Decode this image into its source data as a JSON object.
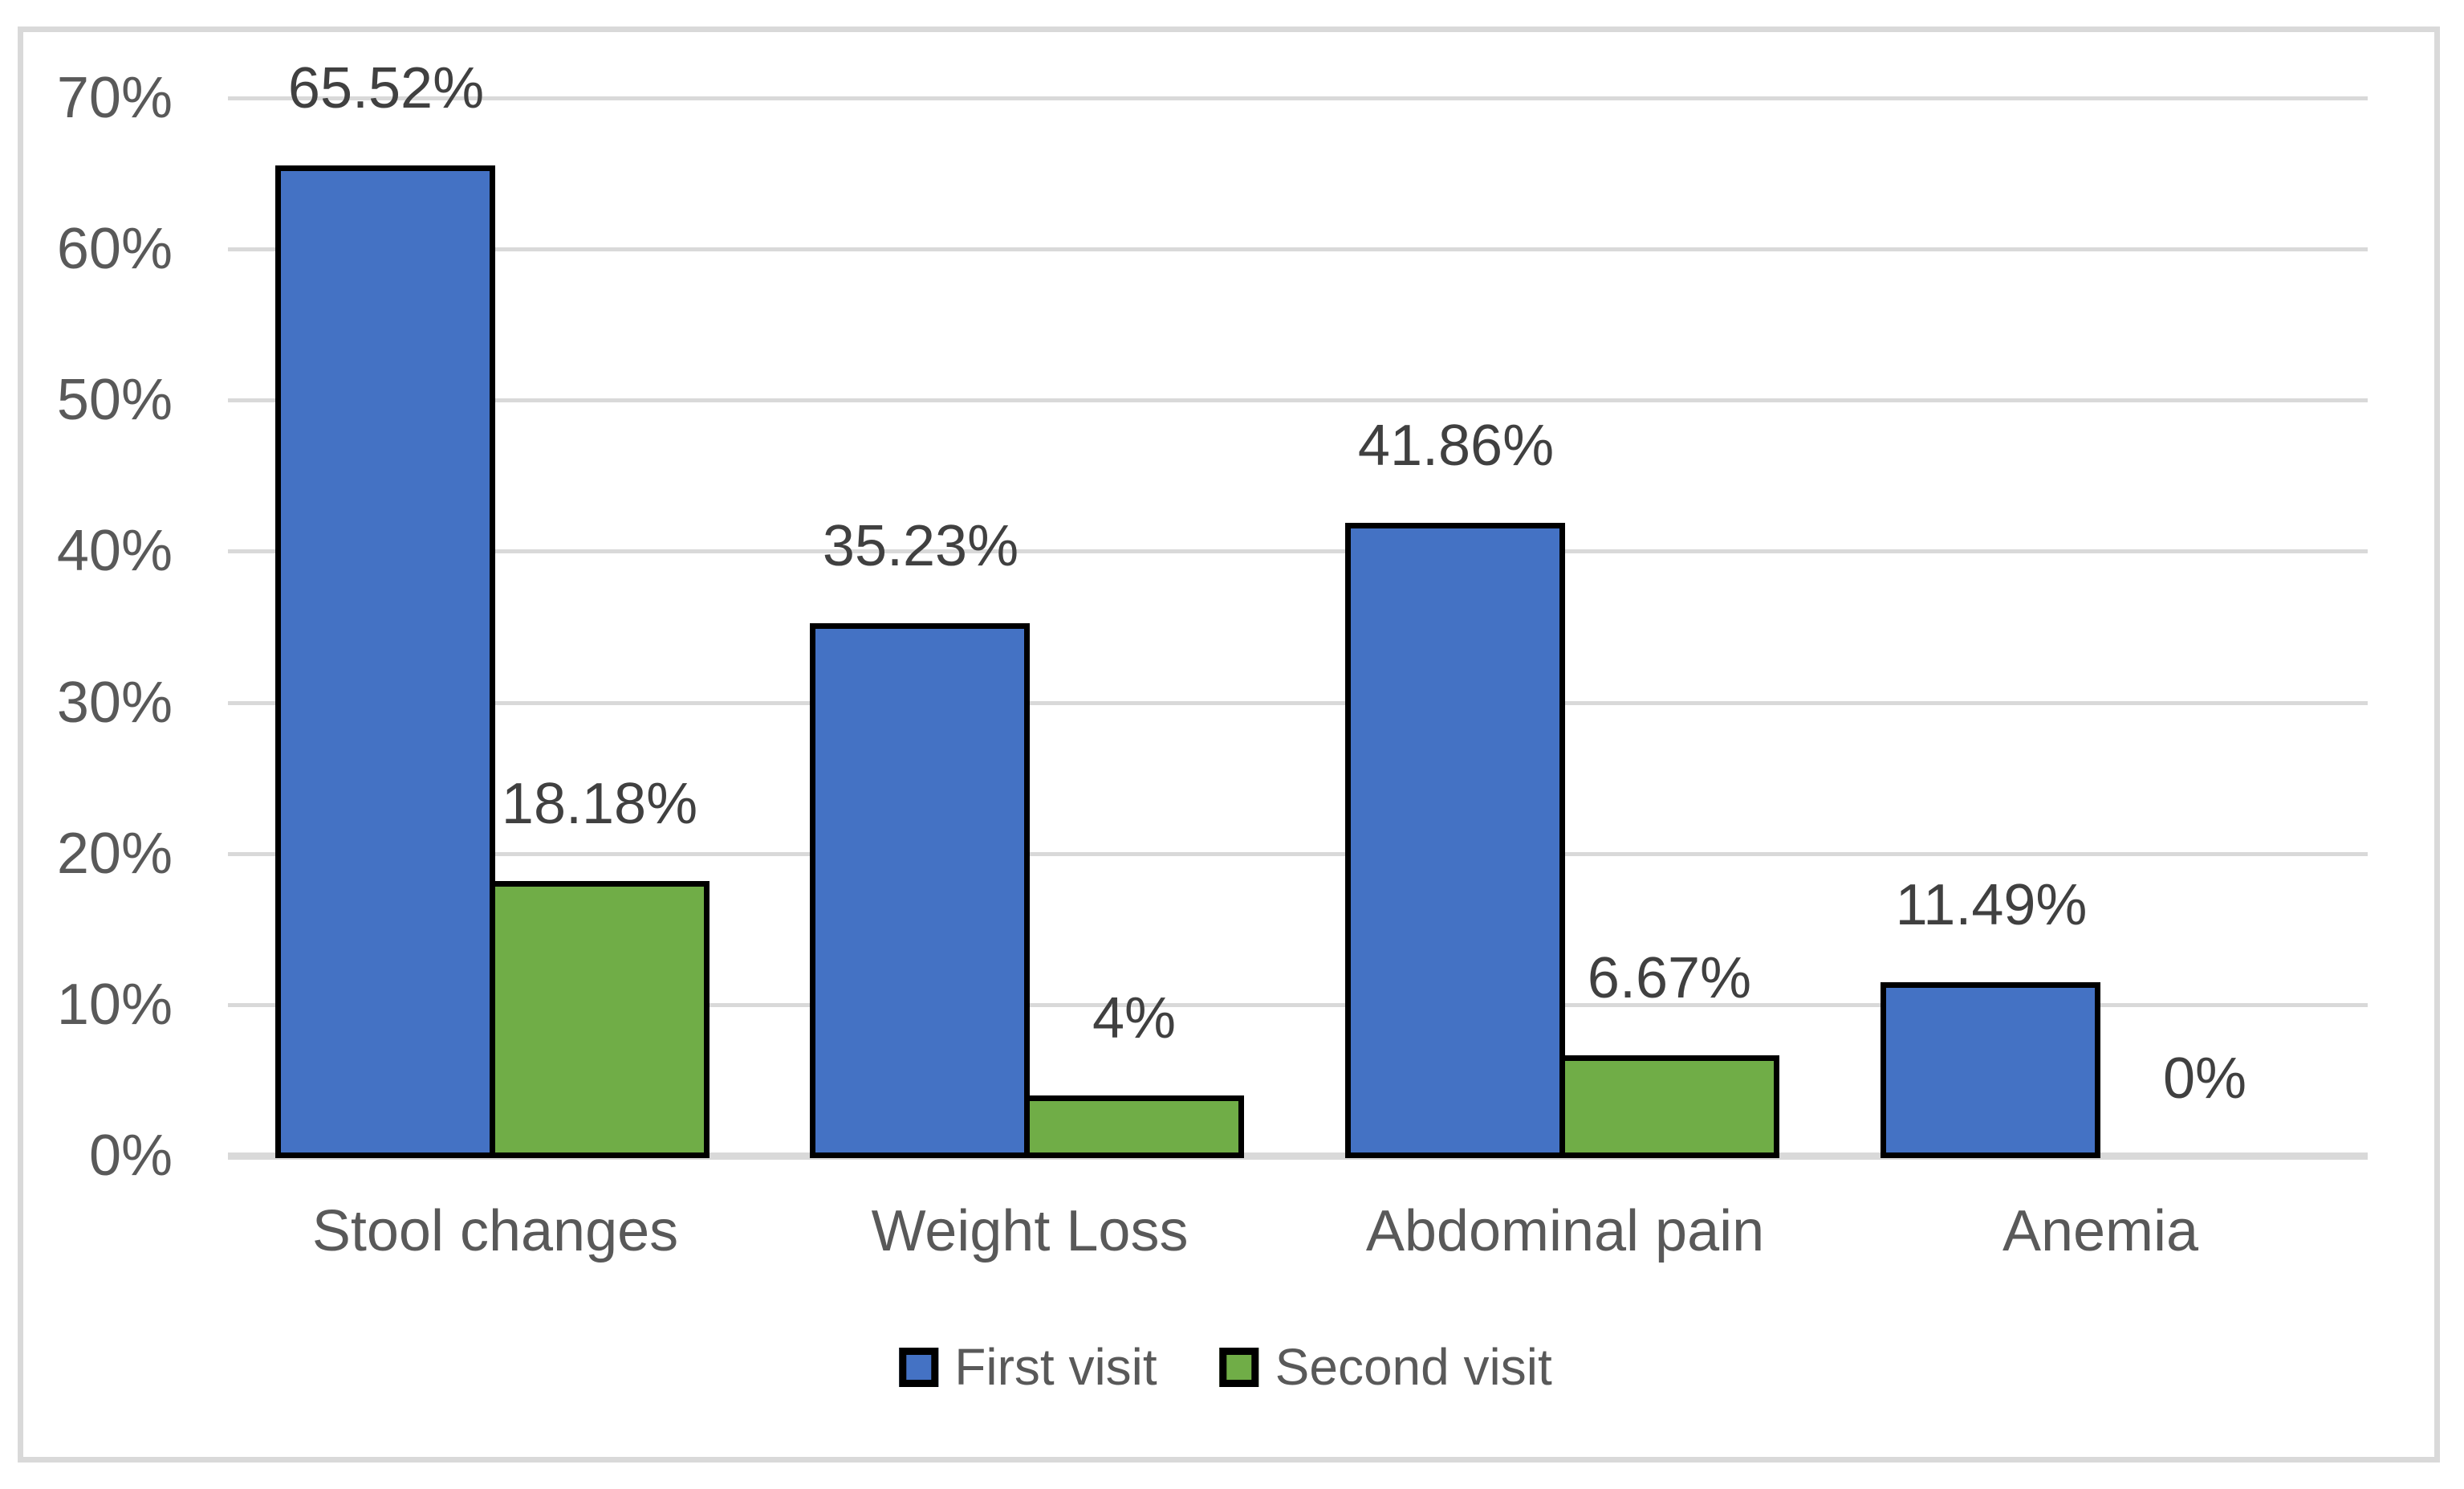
{
  "chart_data": {
    "type": "bar",
    "title": "",
    "categories": [
      "Stool changes",
      "Weight Loss",
      "Abdominal pain",
      "Anemia"
    ],
    "series": [
      {
        "name": "First visit",
        "color": "#4472C4",
        "values": [
          65.52,
          35.23,
          41.86,
          11.49
        ],
        "labels": [
          "65.52%",
          "35.23%",
          "41.86%",
          "11.49%"
        ]
      },
      {
        "name": "Second visit",
        "color": "#70AD47",
        "values": [
          18.18,
          4,
          6.67,
          0
        ],
        "labels": [
          "18.18%",
          "4%",
          "6.67%",
          "0%"
        ]
      }
    ],
    "y_axis": {
      "min": 0,
      "max": 70,
      "tick_values": [
        0,
        10,
        20,
        30,
        40,
        50,
        60,
        70
      ],
      "tick_labels": [
        "0%",
        "10%",
        "20%",
        "30%",
        "40%",
        "50%",
        "60%",
        "70%"
      ]
    },
    "grid": true,
    "legend_position": "bottom",
    "colors": {
      "bar_border": "#000000",
      "gridline": "#D9D9D9",
      "axis_line": "#D9D9D9",
      "figure_border": "#D9D9D9",
      "axis_text": "#595959",
      "category_text": "#595959",
      "legend_text": "#595959",
      "data_label_text": "#404040",
      "background": "#FFFFFF"
    }
  },
  "legend": {
    "items": [
      {
        "label": "First visit",
        "color": "#4472C4"
      },
      {
        "label": "Second visit",
        "color": "#70AD47"
      }
    ]
  }
}
